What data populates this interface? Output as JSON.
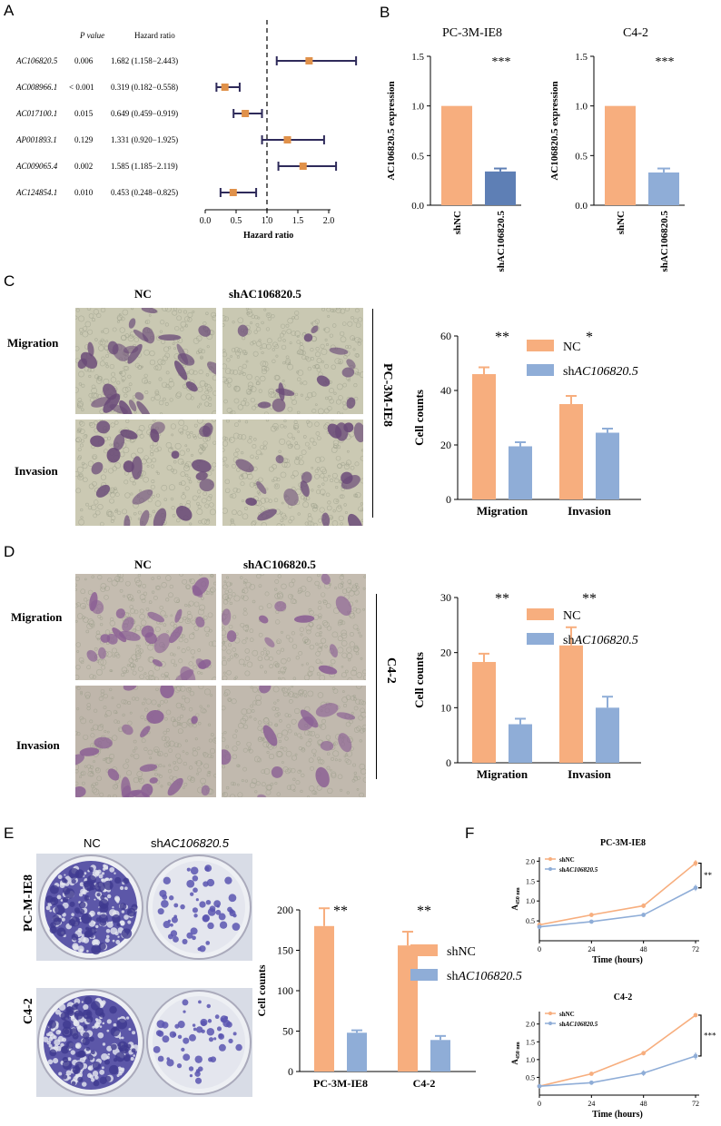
{
  "colors": {
    "nc": "#F7AE7E",
    "sh": "#8FADD7",
    "sh_dark": "#5E7FB5",
    "forest_dot": "#E0914A",
    "forest_line": "#2E2A5A",
    "stain": "#7A4E86"
  },
  "panel_labels": {
    "a": "A",
    "b": "B",
    "c": "C",
    "d": "D",
    "e": "E",
    "f": "F"
  },
  "forest": {
    "col_p": "P value",
    "col_hr": "Hazard ratio",
    "xlabel": "Hazard ratio",
    "ticks": [
      "0.0",
      "0.5",
      "1.0",
      "1.5",
      "2.0"
    ],
    "rows": [
      {
        "gene": "AC106820.5",
        "p": "0.006",
        "hr_text": "1.682 (1.158−2.443)"
      },
      {
        "gene": "AC008966.1",
        "p": "< 0.001",
        "hr_text": "0.319 (0.182−0.558)"
      },
      {
        "gene": "AC017100.1",
        "p": "0.015",
        "hr_text": "0.649 (0.459−0.919)"
      },
      {
        "gene": "AP001893.1",
        "p": "0.129",
        "hr_text": "1.331 (0.920−1.925)"
      },
      {
        "gene": "AC009065.4",
        "p": "0.002",
        "hr_text": "1.585 (1.185−2.119)"
      },
      {
        "gene": "AC124854.1",
        "p": "0.010",
        "hr_text": "0.453 (0.248−0.825)"
      }
    ]
  },
  "chart_data": [
    {
      "type": "scatter",
      "panel": "A",
      "xlabel": "Hazard ratio",
      "xlim": [
        0,
        2.4
      ],
      "categories": [
        "AC106820.5",
        "AC008966.1",
        "AC017100.1",
        "AP001893.1",
        "AC009065.4",
        "AC124854.1"
      ],
      "hr": [
        1.682,
        0.319,
        0.649,
        1.331,
        1.585,
        0.453
      ],
      "lower": [
        1.158,
        0.182,
        0.459,
        0.92,
        1.185,
        0.248
      ],
      "upper": [
        2.443,
        0.558,
        0.919,
        1.925,
        2.119,
        0.825
      ],
      "reference_line": 1.0
    },
    {
      "type": "bar",
      "panel": "B",
      "title": "PC-3M-IE8",
      "ylabel": "AC106820.5 expression",
      "ylim": [
        0,
        1.5
      ],
      "yticks": [
        "0.0",
        "0.5",
        "1.0",
        "1.5"
      ],
      "categories": [
        "shNC",
        "shAC106820.5"
      ],
      "values": [
        1.0,
        0.34
      ],
      "errors": [
        0,
        0.03
      ],
      "significance": "***"
    },
    {
      "type": "bar",
      "panel": "B",
      "title": "C4-2",
      "ylabel": "AC106820.5 expression",
      "ylim": [
        0,
        1.5
      ],
      "yticks": [
        "0.0",
        "0.5",
        "1.0",
        "1.5"
      ],
      "categories": [
        "shNC",
        "shAC106820.5"
      ],
      "values": [
        1.0,
        0.33
      ],
      "errors": [
        0,
        0.04
      ],
      "significance": "***"
    },
    {
      "type": "bar",
      "panel": "C",
      "ylabel": "Cell counts",
      "ylim": [
        0,
        60
      ],
      "yticks": [
        "0",
        "20",
        "40",
        "60"
      ],
      "categories": [
        "Migration",
        "Invasion"
      ],
      "series": [
        {
          "name": "NC",
          "values": [
            46,
            35
          ],
          "errors": [
            2.5,
            3
          ]
        },
        {
          "name": "shAC106820.5",
          "values": [
            19.5,
            24.5
          ],
          "errors": [
            1.5,
            1.5
          ]
        }
      ],
      "significance": [
        "**",
        "*"
      ],
      "legend": "top-right"
    },
    {
      "type": "bar",
      "panel": "D",
      "ylabel": "Cell counts",
      "ylim": [
        0,
        30
      ],
      "yticks": [
        "0",
        "10",
        "20",
        "30"
      ],
      "categories": [
        "Migration",
        "Invasion"
      ],
      "series": [
        {
          "name": "NC",
          "values": [
            18.3,
            21.3
          ],
          "errors": [
            1.5,
            3.3
          ]
        },
        {
          "name": "shAC106820.5",
          "values": [
            7,
            10
          ],
          "errors": [
            1,
            2
          ]
        }
      ],
      "significance": [
        "**",
        "**"
      ],
      "legend": "top-right"
    },
    {
      "type": "bar",
      "panel": "E",
      "ylabel": "Cell counts",
      "ylim": [
        0,
        200
      ],
      "yticks": [
        "0",
        "50",
        "100",
        "150",
        "200"
      ],
      "categories": [
        "PC-3M-IE8",
        "C4-2"
      ],
      "series": [
        {
          "name": "shNC",
          "values": [
            180,
            156
          ],
          "errors": [
            22,
            17
          ]
        },
        {
          "name": "shAC106820.5",
          "values": [
            48,
            39
          ],
          "errors": [
            3,
            5
          ]
        }
      ],
      "significance": [
        "**",
        "**"
      ],
      "legend": "top-right"
    },
    {
      "type": "line",
      "panel": "F",
      "title": "PC-3M-IE8",
      "xlabel": "Time (hours)",
      "ylabel": "A450 nm",
      "x": [
        0,
        24,
        48,
        72
      ],
      "xlim": [
        0,
        72
      ],
      "ylim": [
        0,
        2.1
      ],
      "yticks": [
        "0.5",
        "1.0",
        "1.5",
        "2.0"
      ],
      "series": [
        {
          "name": "shNC",
          "values": [
            0.4,
            0.65,
            0.88,
            1.95
          ],
          "errors": [
            0.02,
            0.05,
            0.06,
            0.08
          ]
        },
        {
          "name": "shAC106820.5",
          "values": [
            0.35,
            0.48,
            0.65,
            1.33
          ],
          "errors": [
            0.02,
            0.03,
            0.05,
            0.08
          ]
        }
      ],
      "significance": "**"
    },
    {
      "type": "line",
      "panel": "F",
      "title": "C4-2",
      "xlabel": "Time (hours)",
      "ylabel": "A450 nm",
      "x": [
        0,
        24,
        48,
        72
      ],
      "xlim": [
        0,
        72
      ],
      "ylim": [
        0,
        2.35
      ],
      "yticks": [
        "0.5",
        "1.0",
        "1.5",
        "2.0"
      ],
      "series": [
        {
          "name": "shNC",
          "values": [
            0.25,
            0.6,
            1.18,
            2.25
          ],
          "errors": [
            0.02,
            0.03,
            0.06,
            0.04
          ]
        },
        {
          "name": "shAC106820.5",
          "values": [
            0.25,
            0.35,
            0.62,
            1.1
          ],
          "errors": [
            0.02,
            0.03,
            0.08,
            0.1
          ]
        }
      ],
      "significance": "***"
    }
  ],
  "panel_c": {
    "col_nc": "NC",
    "col_sh": "shAC106820.5",
    "row1": "Migration",
    "row2": "Invasion",
    "cell_line": "PC-3M-IE8"
  },
  "panel_d": {
    "col_nc": "NC",
    "col_sh": "shAC106820.5",
    "row1": "Migration",
    "row2": "Invasion",
    "cell_line": "C4-2"
  },
  "panel_e": {
    "col_nc": "NC",
    "col_sh_prefix": "sh",
    "col_sh_gene": "AC106820.5",
    "row1": "PC-M-IE8",
    "row2": "C4-2"
  },
  "axis_text": {
    "b_ylabel": "AC106820.5 expression",
    "b_cat1": "shNC",
    "b_cat2": "shAC106820.5",
    "cell_counts": "Cell counts",
    "legend_nc": "NC",
    "legend_shnc": "shNC",
    "legend_sh_prefix": "sh",
    "legend_sh_gene": "AC106820.5",
    "f_xlabel": "Time (hours)",
    "f_ylabel_main": "A",
    "f_ylabel_sub": "450 nm"
  }
}
